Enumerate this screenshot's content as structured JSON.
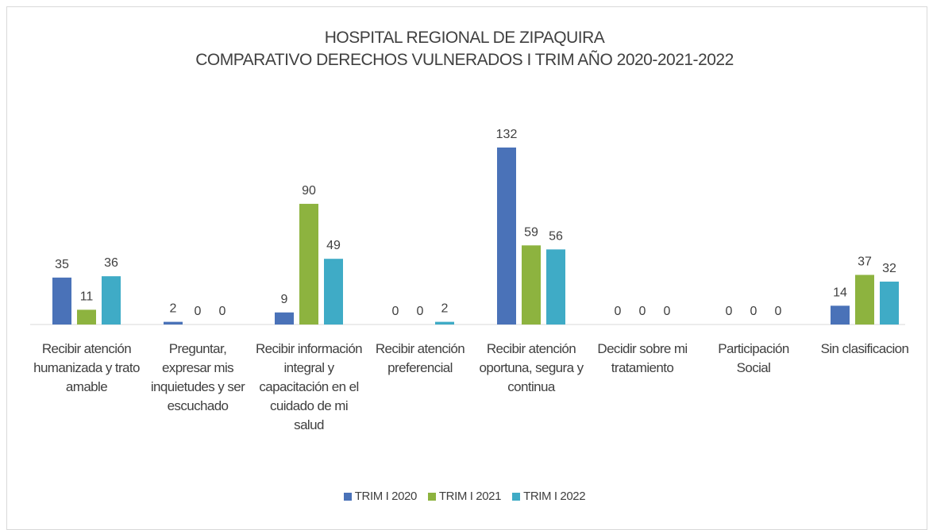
{
  "chart_data": {
    "type": "bar",
    "title": "HOSPITAL REGIONAL DE ZIPAQUIRA",
    "subtitle": "COMPARATIVO DERECHOS VULNERADOS I TRIM AÑO 2020-2021-2022",
    "categories": [
      "Recibir atención humanizada y trato amable",
      "Preguntar, expresar mis inquietudes y ser escuchado",
      "Recibir información integral y capacitación en el cuidado de mi salud",
      "Recibir atención preferencial",
      "Recibir atención oportuna, segura y continua",
      "Decidir sobre mi tratamiento",
      "Participación Social",
      "Sin clasificacion"
    ],
    "series": [
      {
        "name": "TRIM I 2020",
        "color": "#4a72b8",
        "values": [
          35,
          2,
          9,
          0,
          132,
          0,
          0,
          14
        ]
      },
      {
        "name": "TRIM I 2021",
        "color": "#8db33f",
        "values": [
          11,
          0,
          90,
          0,
          59,
          0,
          0,
          37
        ]
      },
      {
        "name": "TRIM I 2022",
        "color": "#3fabc6",
        "values": [
          36,
          0,
          49,
          2,
          56,
          0,
          0,
          32
        ]
      }
    ],
    "legend": "bottom"
  }
}
